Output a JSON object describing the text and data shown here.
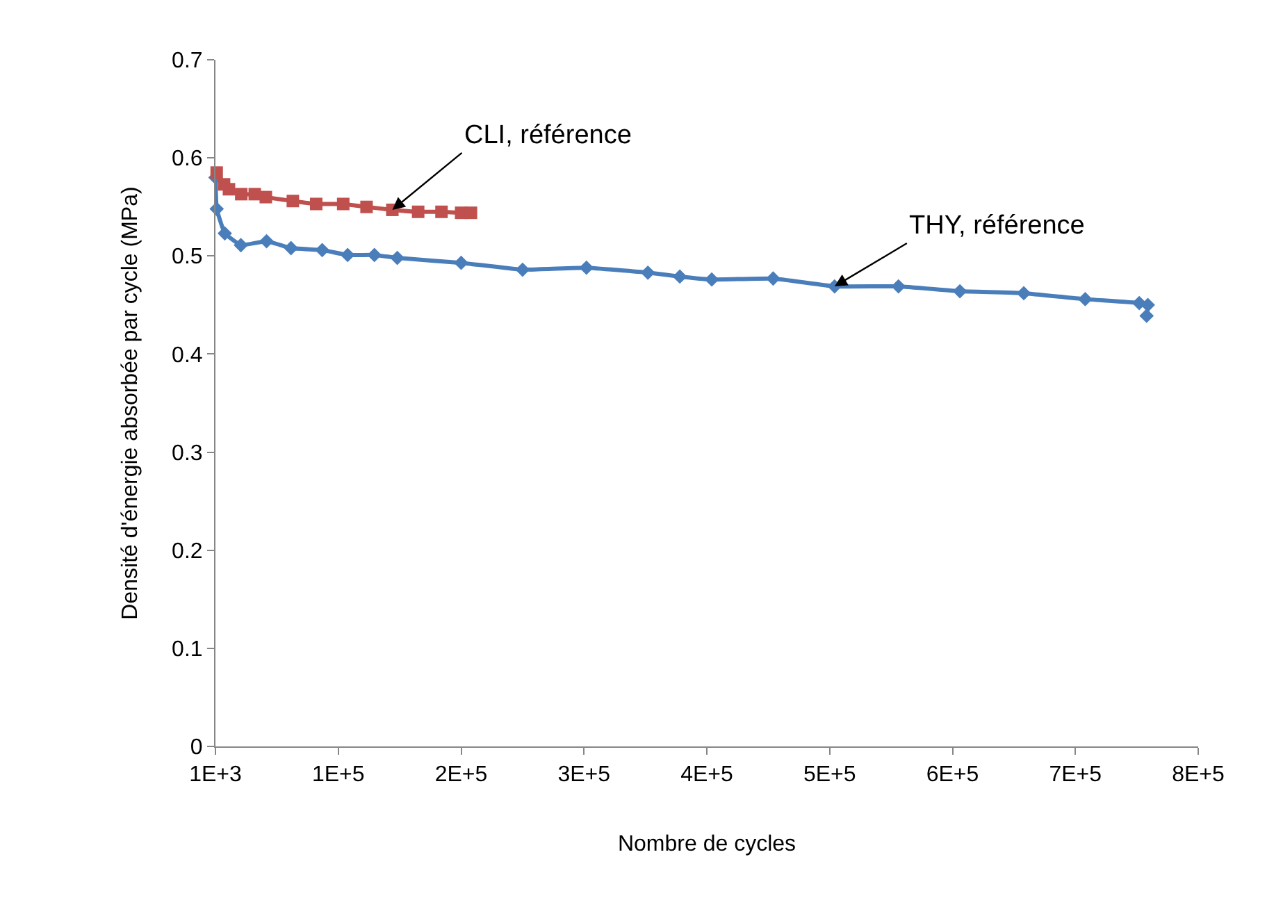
{
  "chart_data": {
    "type": "line",
    "xlabel": "Nombre de cycles",
    "ylabel": "Densité d'énergie absorbée par cycle (MPa)",
    "xlim": [
      1000,
      801000
    ],
    "xticks": [
      {
        "value": 1000,
        "label": "1E+3"
      },
      {
        "value": 101000,
        "label": "1E+5"
      },
      {
        "value": 201000,
        "label": "2E+5"
      },
      {
        "value": 301000,
        "label": "3E+5"
      },
      {
        "value": 401000,
        "label": "4E+5"
      },
      {
        "value": 501000,
        "label": "5E+5"
      },
      {
        "value": 601000,
        "label": "6E+5"
      },
      {
        "value": 701000,
        "label": "7E+5"
      },
      {
        "value": 801000,
        "label": "8E+5"
      }
    ],
    "ylim": [
      0,
      0.7
    ],
    "yticks": [
      0,
      0.1,
      0.2,
      0.3,
      0.4,
      0.5,
      0.6,
      0.7
    ],
    "series": [
      {
        "color": "#4a7ebb",
        "marker": "diamond",
        "x": [
          1000,
          2000,
          8600,
          21700,
          42600,
          62500,
          87900,
          108600,
          130400,
          149000,
          201000,
          251000,
          303000,
          353000,
          379000,
          405000,
          455000,
          505000,
          557000,
          607000,
          659000,
          709000,
          753000,
          760000,
          759000
        ],
        "values": [
          0.58,
          0.548,
          0.523,
          0.511,
          0.515,
          0.508,
          0.506,
          0.501,
          0.501,
          0.498,
          0.493,
          0.486,
          0.488,
          0.483,
          0.479,
          0.476,
          0.477,
          0.469,
          0.469,
          0.464,
          0.462,
          0.456,
          0.452,
          0.45,
          0.439
        ]
      },
      {
        "color": "#c0504d",
        "marker": "square",
        "x": [
          2000,
          8000,
          12000,
          22000,
          33000,
          42000,
          64000,
          83000,
          105000,
          124000,
          145000,
          166000,
          185000,
          201000,
          209000
        ],
        "values": [
          0.585,
          0.573,
          0.568,
          0.563,
          0.563,
          0.56,
          0.556,
          0.553,
          0.553,
          0.55,
          0.547,
          0.545,
          0.545,
          0.544,
          0.544
        ]
      }
    ],
    "annotations": [
      {
        "text": "CLI, référence",
        "x": 145000,
        "y": 0.547
      },
      {
        "text": "THY, référence",
        "x": 505000,
        "y": 0.469
      }
    ]
  }
}
